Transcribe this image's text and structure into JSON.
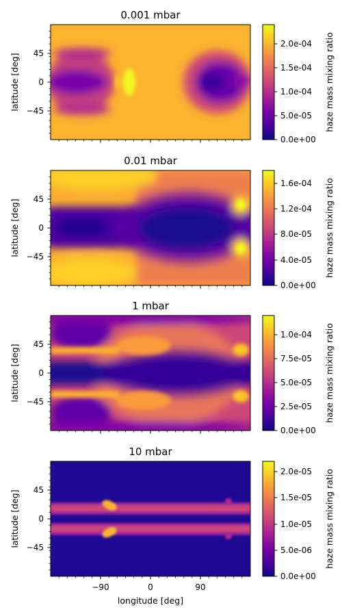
{
  "figure": {
    "x_label": "longitude [deg]",
    "y_label": "latitude [deg]",
    "colorbar_label": "haze mass mixing ratio",
    "x_tick_labels": [
      "−90",
      "0",
      "90"
    ],
    "y_tick_labels": [
      "45",
      "0",
      "−45"
    ]
  },
  "chart_data": [
    {
      "type": "heatmap",
      "title": "0.001 mbar",
      "xlabel": "",
      "ylabel": "latitude [deg]",
      "xlim": [
        -180,
        180
      ],
      "ylim": [
        -90,
        90
      ],
      "x_ticks": [
        -90,
        0,
        90
      ],
      "y_ticks": [
        45,
        0,
        -45
      ],
      "colormap": "plasma",
      "colorbar": {
        "label": "haze mass mixing ratio",
        "range": [
          0,
          0.00024
        ],
        "ticks": [
          0,
          5e-05,
          0.0001,
          0.00015,
          0.0002
        ],
        "tick_labels": [
          "0.0e+00",
          "5.0e-05",
          "1.0e-04",
          "1.5e-04",
          "2.0e-04"
        ]
      },
      "field_description": "Bright high values across most of the map; low-value (dark) lobes centred near the equator on the western (-180 to -90) and eastern (+70 to +170) sides, with a bright peak near -40 longitude at the equator."
    },
    {
      "type": "heatmap",
      "title": "0.01 mbar",
      "xlabel": "",
      "ylabel": "latitude [deg]",
      "xlim": [
        -180,
        180
      ],
      "ylim": [
        -90,
        90
      ],
      "x_ticks": [
        -90,
        0,
        90
      ],
      "y_ticks": [
        45,
        0,
        -45
      ],
      "colormap": "plasma",
      "colorbar": {
        "label": "haze mass mixing ratio",
        "range": [
          0,
          0.00018
        ],
        "ticks": [
          0,
          4e-05,
          8e-05,
          0.00012,
          0.00016
        ],
        "tick_labels": [
          "0.0e+00",
          "4.0e-05",
          "8.0e-05",
          "1.2e-04",
          "1.6e-04"
        ]
      },
      "field_description": "Dark equatorial band (about -25 to 25 latitude, widening to about -45 to 45 between longitude -30 and 150); bright values at mid/high latitudes on the west side and near (160, ±35)."
    },
    {
      "type": "heatmap",
      "title": "1 mbar",
      "xlabel": "",
      "ylabel": "latitude [deg]",
      "xlim": [
        -180,
        180
      ],
      "ylim": [
        -90,
        90
      ],
      "x_ticks": [
        -90,
        0,
        90
      ],
      "y_ticks": [
        45,
        0,
        -45
      ],
      "colormap": "plasma",
      "colorbar": {
        "label": "haze mass mixing ratio",
        "range": [
          0,
          0.00012
        ],
        "ticks": [
          0,
          2.5e-05,
          5e-05,
          7.5e-05,
          0.0001
        ],
        "tick_labels": [
          "0.0e+00",
          "2.5e-05",
          "5.0e-05",
          "7.5e-05",
          "1.0e-04"
        ]
      },
      "field_description": "Dark equator; bright bands near ±30 latitude on the western side, broadening to a diffuse orange region between longitude -80 and 130; bright spots near (165, ±35)."
    },
    {
      "type": "heatmap",
      "title": "10 mbar",
      "xlabel": "longitude [deg]",
      "ylabel": "latitude [deg]",
      "xlim": [
        -180,
        180
      ],
      "ylim": [
        -90,
        90
      ],
      "x_ticks": [
        -90,
        0,
        90
      ],
      "y_ticks": [
        45,
        0,
        -45
      ],
      "colormap": "plasma",
      "colorbar": {
        "label": "haze mass mixing ratio",
        "range": [
          0,
          2.2e-05
        ],
        "ticks": [
          0,
          5e-06,
          1e-05,
          1.5e-05,
          2e-05
        ],
        "tick_labels": [
          "0.0e+00",
          "5.0e-06",
          "1.0e-05",
          "1.5e-05",
          "2.0e-05"
        ]
      },
      "field_description": "Mostly very low (dark) everywhere except two thin zonal stripes near ±15 latitude; bright yellow spots at about (-85, ±20) and small features near (140, ±18)."
    }
  ]
}
